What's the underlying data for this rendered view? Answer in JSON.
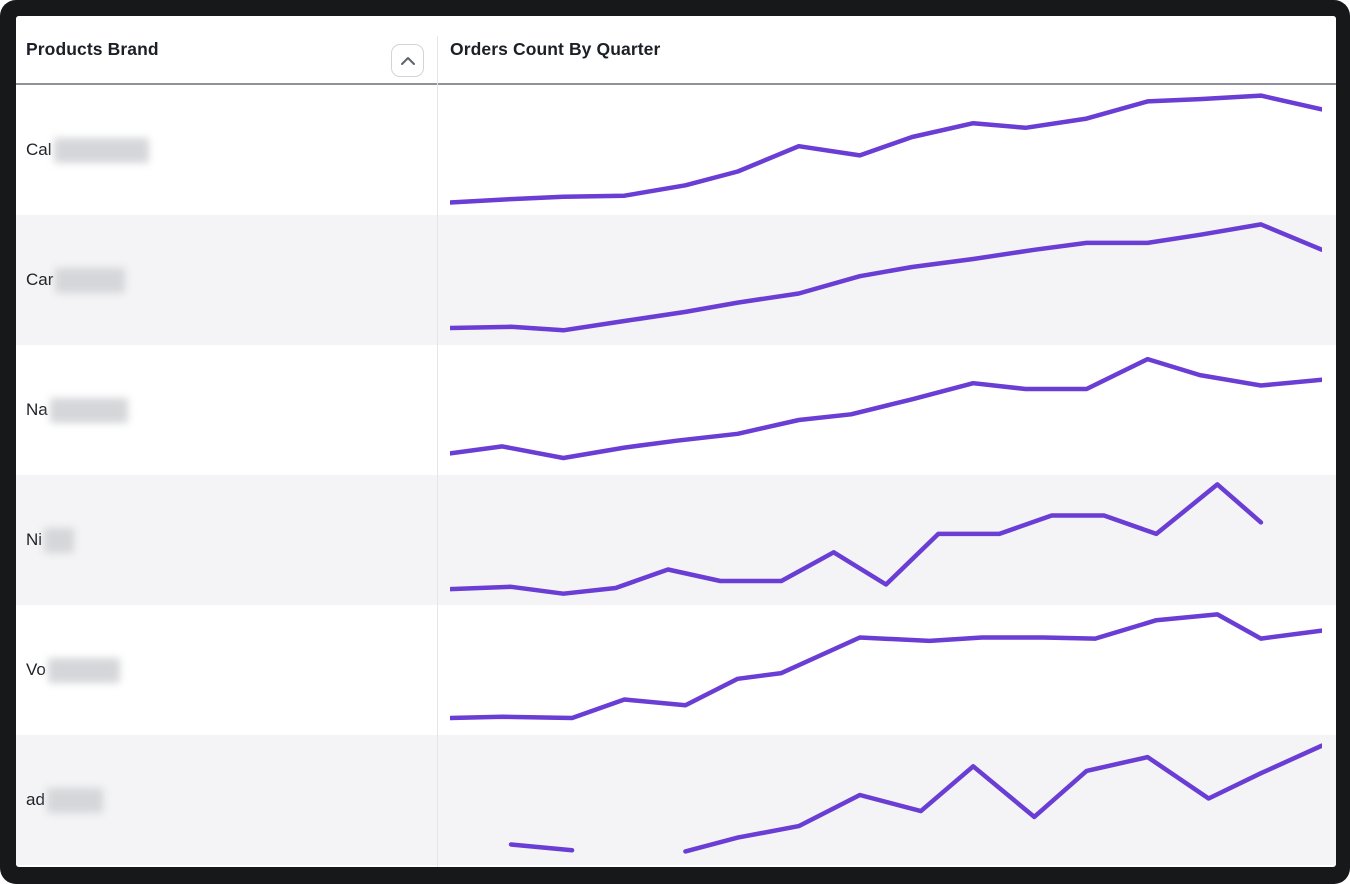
{
  "window": {
    "frame_color": "#17181a",
    "app_kind": "BI table visualization with sparklines"
  },
  "header": {
    "products_brand_label": "Products Brand",
    "orders_count_label": "Orders Count By Quarter",
    "sort_direction": "ascending",
    "sort_icon": "chevron-up-icon"
  },
  "colors": {
    "line": "#6A3DD4",
    "row_stripe": "#f4f4f6",
    "row_plain": "#ffffff",
    "header_underline": "#8e939b",
    "column_divider": "#e5e6e9",
    "text": "#1e2127",
    "redaction": "#d5d6d9"
  },
  "rows": [
    {
      "brand_visible": "Cal",
      "brand_redacted": true,
      "redact_width": 95
    },
    {
      "brand_visible": "Car",
      "brand_redacted": true,
      "redact_width": 70
    },
    {
      "brand_visible": "Na",
      "brand_redacted": true,
      "redact_width": 78
    },
    {
      "brand_visible": "Ni",
      "brand_redacted": true,
      "redact_width": 30
    },
    {
      "brand_visible": "Vo",
      "brand_redacted": true,
      "redact_width": 72
    },
    {
      "brand_visible": "ad",
      "brand_redacted": true,
      "redact_width": 56
    }
  ],
  "chart_data": {
    "type": "line",
    "title": "Orders Count By Quarter",
    "xlabel": "quarter (tick labels not shown, ~16 periods)",
    "ylabel": "orders count (axis not shown; values are 0-100 relative within each row)",
    "grid": false,
    "legend": "none",
    "series": [
      {
        "name": "Cal (redacted)",
        "segments": [
          [
            [
              0,
              3
            ],
            [
              7,
              6
            ],
            [
              13,
              8
            ],
            [
              20,
              9
            ],
            [
              27,
              18
            ],
            [
              33,
              30
            ],
            [
              40,
              52
            ],
            [
              47,
              44
            ],
            [
              53,
              60
            ],
            [
              60,
              72
            ],
            [
              66,
              68
            ],
            [
              73,
              76
            ],
            [
              80,
              91
            ],
            [
              86,
              93
            ],
            [
              93,
              96
            ],
            [
              100,
              84
            ]
          ]
        ]
      },
      {
        "name": "Car (redacted)",
        "segments": [
          [
            [
              0,
              7
            ],
            [
              7,
              8
            ],
            [
              13,
              5
            ],
            [
              20,
              13
            ],
            [
              27,
              21
            ],
            [
              33,
              29
            ],
            [
              40,
              37
            ],
            [
              47,
              52
            ],
            [
              53,
              60
            ],
            [
              60,
              67
            ],
            [
              67,
              75
            ],
            [
              73,
              81
            ],
            [
              80,
              81
            ],
            [
              86,
              88
            ],
            [
              93,
              97
            ],
            [
              100,
              75
            ]
          ]
        ]
      },
      {
        "name": "Na (redacted)",
        "segments": [
          [
            [
              0,
              11
            ],
            [
              6,
              17
            ],
            [
              13,
              7
            ],
            [
              20,
              16
            ],
            [
              26,
              22
            ],
            [
              33,
              28
            ],
            [
              40,
              40
            ],
            [
              46,
              45
            ],
            [
              53,
              58
            ],
            [
              60,
              72
            ],
            [
              66,
              67
            ],
            [
              73,
              67
            ],
            [
              80,
              93
            ],
            [
              86,
              79
            ],
            [
              93,
              70
            ],
            [
              100,
              75
            ]
          ]
        ]
      },
      {
        "name": "Ni (redacted)",
        "segments": [
          [
            [
              0,
              6
            ],
            [
              7,
              8
            ],
            [
              13,
              2
            ],
            [
              19,
              7
            ],
            [
              25,
              23
            ],
            [
              31,
              13
            ],
            [
              38,
              13
            ],
            [
              44,
              38
            ],
            [
              50,
              10
            ],
            [
              56,
              54
            ],
            [
              63,
              54
            ],
            [
              69,
              70
            ],
            [
              75,
              70
            ],
            [
              81,
              54
            ],
            [
              88,
              97
            ],
            [
              93,
              64
            ]
          ]
        ]
      },
      {
        "name": "Vo (redacted)",
        "segments": [
          [
            [
              0,
              7
            ],
            [
              6,
              8
            ],
            [
              14,
              7
            ],
            [
              20,
              23
            ],
            [
              27,
              18
            ],
            [
              33,
              41
            ],
            [
              38,
              46
            ],
            [
              47,
              77
            ],
            [
              55,
              74
            ],
            [
              61,
              77
            ],
            [
              68,
              77
            ],
            [
              74,
              76
            ],
            [
              81,
              92
            ],
            [
              88,
              97
            ],
            [
              93,
              76
            ],
            [
              100,
              83
            ]
          ]
        ]
      },
      {
        "name": "ad (redacted)",
        "segments": [
          [
            [
              7,
              10
            ],
            [
              14,
              5
            ]
          ],
          [
            [
              27,
              4
            ],
            [
              33,
              16
            ],
            [
              40,
              26
            ],
            [
              47,
              53
            ],
            [
              54,
              39
            ],
            [
              60,
              78
            ],
            [
              67,
              34
            ],
            [
              73,
              74
            ],
            [
              80,
              86
            ],
            [
              87,
              50
            ],
            [
              93,
              72
            ],
            [
              100,
              96
            ]
          ]
        ]
      }
    ]
  }
}
